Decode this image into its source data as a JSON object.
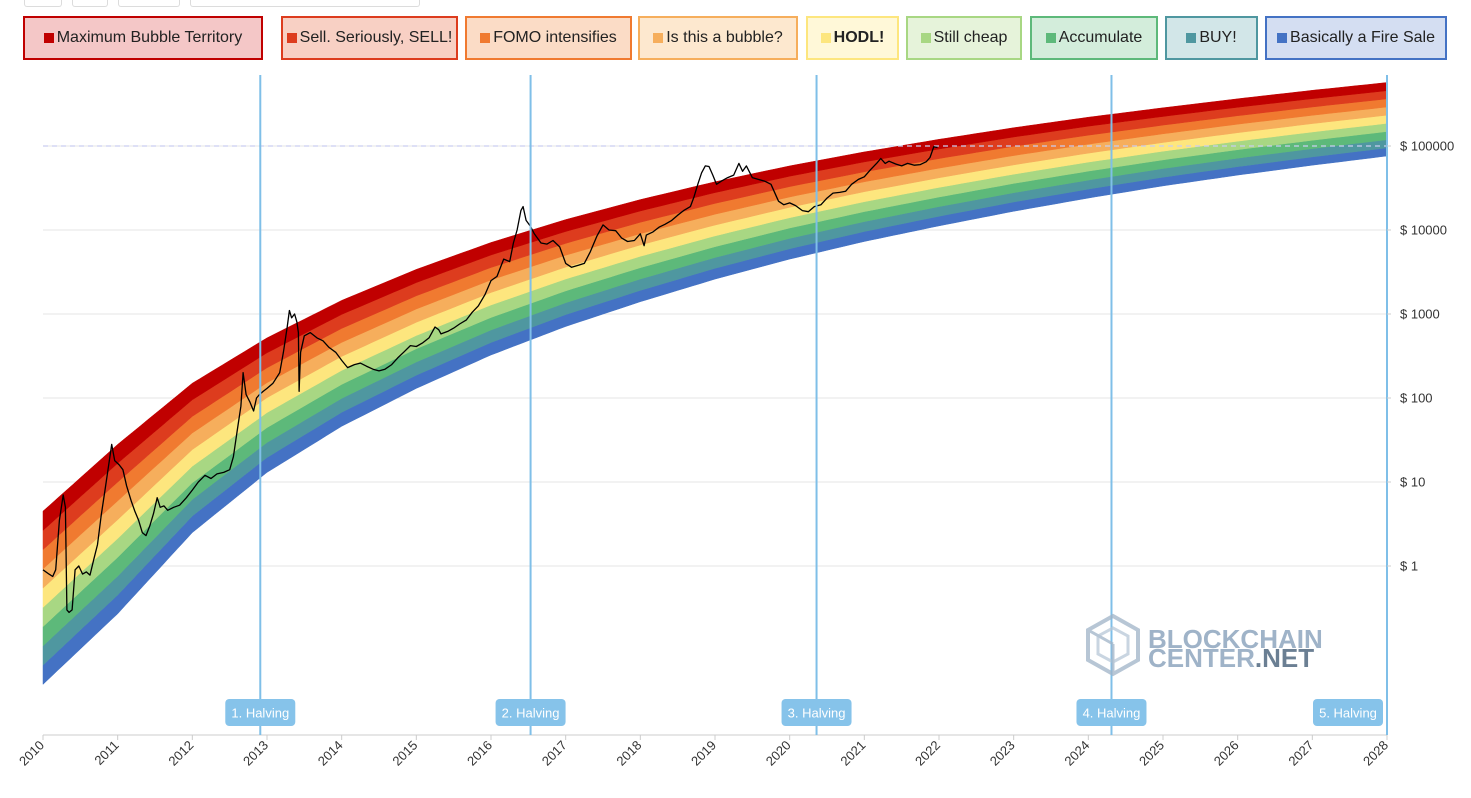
{
  "legend": [
    {
      "label": "Maximum Bubble Territory",
      "color": "#c00000",
      "bg": "#f4c7c7",
      "border": "#c00000",
      "bold": false
    },
    {
      "label": "Sell. Seriously, SELL!",
      "color": "#dd3c1e",
      "bg": "#f8d0c4",
      "border": "#dd3c1e",
      "bold": false
    },
    {
      "label": "FOMO intensifies",
      "color": "#f07a30",
      "bg": "#fbdcc6",
      "border": "#f07a30",
      "bold": false
    },
    {
      "label": "Is this a bubble?",
      "color": "#f6ae5c",
      "bg": "#fde8cf",
      "border": "#f6ae5c",
      "bold": false
    },
    {
      "label": "HODL!",
      "color": "#fde67e",
      "bg": "#fff8d8",
      "border": "#fde67e",
      "bold": true
    },
    {
      "label": "Still cheap",
      "color": "#a8d783",
      "bg": "#e6f3da",
      "border": "#a8d783",
      "bold": false
    },
    {
      "label": "Accumulate",
      "color": "#5db97a",
      "bg": "#d3eddb",
      "border": "#5db97a",
      "bold": false
    },
    {
      "label": "BUY!",
      "color": "#4f97a0",
      "bg": "#d2e6e8",
      "border": "#4f97a0",
      "bold": false
    },
    {
      "label": "Basically a Fire Sale",
      "color": "#4472c4",
      "bg": "#d4def2",
      "border": "#4472c4",
      "bold": false
    }
  ],
  "watermark": {
    "line1": "BLOCKCHAIN",
    "line2a": "CENTER",
    "line2b": ".NET"
  },
  "chart_data": {
    "type": "line",
    "title": "",
    "xlabel": "",
    "ylabel": "",
    "y_scale": "log",
    "xlim": [
      2010.0,
      2028.0
    ],
    "ylim": [
      0.008,
      500000
    ],
    "x_ticks": [
      "2010",
      "2011",
      "2012",
      "2013",
      "2014",
      "2015",
      "2016",
      "2017",
      "2018",
      "2019",
      "2020",
      "2021",
      "2022",
      "2023",
      "2024",
      "2025",
      "2026",
      "2027",
      "2028"
    ],
    "y_ticks": [
      {
        "value": 1,
        "label": "$ 1"
      },
      {
        "value": 10,
        "label": "$ 10"
      },
      {
        "value": 100,
        "label": "$ 100"
      },
      {
        "value": 1000,
        "label": "$ 1000"
      },
      {
        "value": 10000,
        "label": "$ 10000"
      },
      {
        "value": 100000,
        "label": "$ 100000"
      }
    ],
    "bands": {
      "series": [
        "Basically a Fire Sale",
        "BUY!",
        "Accumulate",
        "Still cheap",
        "HODL!",
        "Is this a bubble?",
        "FOMO intensifies",
        "Sell. Seriously, SELL!",
        "Maximum Bubble Territory"
      ],
      "colors": [
        "#4472c4",
        "#4f97a0",
        "#5db97a",
        "#a8d783",
        "#fde67e",
        "#f6ae5c",
        "#f07a30",
        "#dd3c1e",
        "#c00000"
      ],
      "lower_bound": [
        {
          "x": 2010.0,
          "y": 0.039
        },
        {
          "x": 2011.0,
          "y": 0.27
        },
        {
          "x": 2012.0,
          "y": 2.5
        },
        {
          "x": 2013.0,
          "y": 13
        },
        {
          "x": 2014.0,
          "y": 46
        },
        {
          "x": 2015.0,
          "y": 130
        },
        {
          "x": 2016.0,
          "y": 325
        },
        {
          "x": 2017.0,
          "y": 710
        },
        {
          "x": 2018.0,
          "y": 1400
        },
        {
          "x": 2019.0,
          "y": 2600
        },
        {
          "x": 2020.0,
          "y": 4500
        },
        {
          "x": 2021.0,
          "y": 7300
        },
        {
          "x": 2022.0,
          "y": 11200
        },
        {
          "x": 2023.0,
          "y": 16700
        },
        {
          "x": 2024.0,
          "y": 24000
        },
        {
          "x": 2025.0,
          "y": 33500
        },
        {
          "x": 2026.0,
          "y": 45000
        },
        {
          "x": 2027.0,
          "y": 59000
        },
        {
          "x": 2028.0,
          "y": 76000
        }
      ],
      "upper_bound": [
        {
          "x": 2010.0,
          "y": 4.5
        },
        {
          "x": 2011.0,
          "y": 28
        },
        {
          "x": 2012.0,
          "y": 150
        },
        {
          "x": 2013.0,
          "y": 520
        },
        {
          "x": 2014.0,
          "y": 1450
        },
        {
          "x": 2015.0,
          "y": 3400
        },
        {
          "x": 2016.0,
          "y": 7100
        },
        {
          "x": 2017.0,
          "y": 13300
        },
        {
          "x": 2018.0,
          "y": 23000
        },
        {
          "x": 2019.0,
          "y": 37500
        },
        {
          "x": 2020.0,
          "y": 58000
        },
        {
          "x": 2021.0,
          "y": 85000
        },
        {
          "x": 2022.0,
          "y": 120000
        },
        {
          "x": 2023.0,
          "y": 165000
        },
        {
          "x": 2024.0,
          "y": 220000
        },
        {
          "x": 2025.0,
          "y": 285000
        },
        {
          "x": 2026.0,
          "y": 365000
        },
        {
          "x": 2027.0,
          "y": 460000
        },
        {
          "x": 2028.0,
          "y": 570000
        }
      ]
    },
    "series": [
      {
        "values": [
          {
            "x": 2010.0,
            "y": 0.9
          },
          {
            "x": 2010.08,
            "y": 0.8
          },
          {
            "x": 2010.13,
            "y": 0.75
          },
          {
            "x": 2010.17,
            "y": 0.9
          },
          {
            "x": 2010.22,
            "y": 3.5
          },
          {
            "x": 2010.27,
            "y": 7
          },
          {
            "x": 2010.3,
            "y": 5
          },
          {
            "x": 2010.32,
            "y": 0.3
          },
          {
            "x": 2010.35,
            "y": 0.28
          },
          {
            "x": 2010.39,
            "y": 0.3
          },
          {
            "x": 2010.43,
            "y": 0.9
          },
          {
            "x": 2010.48,
            "y": 1.0
          },
          {
            "x": 2010.53,
            "y": 0.8
          },
          {
            "x": 2010.58,
            "y": 0.85
          },
          {
            "x": 2010.63,
            "y": 0.78
          },
          {
            "x": 2010.68,
            "y": 1.2
          },
          {
            "x": 2010.73,
            "y": 1.8
          },
          {
            "x": 2010.78,
            "y": 4
          },
          {
            "x": 2010.83,
            "y": 8
          },
          {
            "x": 2010.87,
            "y": 14
          },
          {
            "x": 2010.92,
            "y": 28
          },
          {
            "x": 2010.96,
            "y": 18
          },
          {
            "x": 2011.02,
            "y": 16
          },
          {
            "x": 2011.07,
            "y": 14
          },
          {
            "x": 2011.12,
            "y": 9
          },
          {
            "x": 2011.18,
            "y": 6
          },
          {
            "x": 2011.23,
            "y": 4.5
          },
          {
            "x": 2011.28,
            "y": 3.5
          },
          {
            "x": 2011.33,
            "y": 2.5
          },
          {
            "x": 2011.38,
            "y": 2.3
          },
          {
            "x": 2011.43,
            "y": 3
          },
          {
            "x": 2011.48,
            "y": 4.2
          },
          {
            "x": 2011.53,
            "y": 6.5
          },
          {
            "x": 2011.57,
            "y": 5
          },
          {
            "x": 2011.62,
            "y": 5.2
          },
          {
            "x": 2011.67,
            "y": 4.6
          },
          {
            "x": 2011.75,
            "y": 5
          },
          {
            "x": 2011.83,
            "y": 5.3
          },
          {
            "x": 2011.92,
            "y": 6.5
          },
          {
            "x": 2012.0,
            "y": 8
          },
          {
            "x": 2012.08,
            "y": 10
          },
          {
            "x": 2012.17,
            "y": 12
          },
          {
            "x": 2012.25,
            "y": 11
          },
          {
            "x": 2012.33,
            "y": 12.5
          },
          {
            "x": 2012.42,
            "y": 13
          },
          {
            "x": 2012.5,
            "y": 14
          },
          {
            "x": 2012.55,
            "y": 20
          },
          {
            "x": 2012.6,
            "y": 40
          },
          {
            "x": 2012.65,
            "y": 80
          },
          {
            "x": 2012.68,
            "y": 200
          },
          {
            "x": 2012.72,
            "y": 110
          },
          {
            "x": 2012.77,
            "y": 90
          },
          {
            "x": 2012.82,
            "y": 70
          },
          {
            "x": 2012.86,
            "y": 100
          },
          {
            "x": 2012.9,
            "y": 110
          },
          {
            "x": 2012.95,
            "y": 120
          },
          {
            "x": 2013.0,
            "y": 130
          },
          {
            "x": 2013.08,
            "y": 150
          },
          {
            "x": 2013.17,
            "y": 200
          },
          {
            "x": 2013.22,
            "y": 350
          },
          {
            "x": 2013.27,
            "y": 700
          },
          {
            "x": 2013.3,
            "y": 1100
          },
          {
            "x": 2013.33,
            "y": 900
          },
          {
            "x": 2013.37,
            "y": 1000
          },
          {
            "x": 2013.4,
            "y": 800
          },
          {
            "x": 2013.42,
            "y": 600
          },
          {
            "x": 2013.43,
            "y": 120
          },
          {
            "x": 2013.45,
            "y": 350
          },
          {
            "x": 2013.5,
            "y": 550
          },
          {
            "x": 2013.58,
            "y": 600
          },
          {
            "x": 2013.67,
            "y": 520
          },
          {
            "x": 2013.75,
            "y": 480
          },
          {
            "x": 2013.83,
            "y": 400
          },
          {
            "x": 2013.92,
            "y": 350
          },
          {
            "x": 2014.0,
            "y": 280
          },
          {
            "x": 2014.08,
            "y": 230
          },
          {
            "x": 2014.17,
            "y": 250
          },
          {
            "x": 2014.25,
            "y": 260
          },
          {
            "x": 2014.33,
            "y": 240
          },
          {
            "x": 2014.42,
            "y": 220
          },
          {
            "x": 2014.5,
            "y": 210
          },
          {
            "x": 2014.58,
            "y": 220
          },
          {
            "x": 2014.67,
            "y": 250
          },
          {
            "x": 2014.75,
            "y": 300
          },
          {
            "x": 2014.83,
            "y": 350
          },
          {
            "x": 2014.92,
            "y": 420
          },
          {
            "x": 2015.0,
            "y": 410
          },
          {
            "x": 2015.08,
            "y": 450
          },
          {
            "x": 2015.17,
            "y": 520
          },
          {
            "x": 2015.25,
            "y": 700
          },
          {
            "x": 2015.3,
            "y": 650
          },
          {
            "x": 2015.33,
            "y": 580
          },
          {
            "x": 2015.42,
            "y": 620
          },
          {
            "x": 2015.5,
            "y": 680
          },
          {
            "x": 2015.58,
            "y": 760
          },
          {
            "x": 2015.67,
            "y": 850
          },
          {
            "x": 2015.75,
            "y": 1050
          },
          {
            "x": 2015.83,
            "y": 1250
          },
          {
            "x": 2015.92,
            "y": 1700
          },
          {
            "x": 2016.0,
            "y": 2500
          },
          {
            "x": 2016.08,
            "y": 2800
          },
          {
            "x": 2016.17,
            "y": 4500
          },
          {
            "x": 2016.25,
            "y": 4200
          },
          {
            "x": 2016.3,
            "y": 7000
          },
          {
            "x": 2016.35,
            "y": 10000
          },
          {
            "x": 2016.4,
            "y": 17000
          },
          {
            "x": 2016.43,
            "y": 19000
          },
          {
            "x": 2016.47,
            "y": 13000
          },
          {
            "x": 2016.53,
            "y": 11000
          },
          {
            "x": 2016.58,
            "y": 9000
          },
          {
            "x": 2016.67,
            "y": 7000
          },
          {
            "x": 2016.75,
            "y": 6800
          },
          {
            "x": 2016.83,
            "y": 7500
          },
          {
            "x": 2016.92,
            "y": 6300
          },
          {
            "x": 2017.0,
            "y": 4000
          },
          {
            "x": 2017.08,
            "y": 3600
          },
          {
            "x": 2017.17,
            "y": 3800
          },
          {
            "x": 2017.25,
            "y": 4000
          },
          {
            "x": 2017.33,
            "y": 5500
          },
          {
            "x": 2017.42,
            "y": 8500
          },
          {
            "x": 2017.5,
            "y": 11500
          },
          {
            "x": 2017.58,
            "y": 10000
          },
          {
            "x": 2017.67,
            "y": 9800
          },
          {
            "x": 2017.75,
            "y": 8000
          },
          {
            "x": 2017.83,
            "y": 7300
          },
          {
            "x": 2017.92,
            "y": 7500
          },
          {
            "x": 2018.0,
            "y": 9000
          },
          {
            "x": 2018.05,
            "y": 6500
          },
          {
            "x": 2018.08,
            "y": 8700
          },
          {
            "x": 2018.17,
            "y": 9500
          },
          {
            "x": 2018.25,
            "y": 10800
          },
          {
            "x": 2018.33,
            "y": 11700
          },
          {
            "x": 2018.42,
            "y": 13000
          },
          {
            "x": 2018.5,
            "y": 15000
          },
          {
            "x": 2018.58,
            "y": 17000
          },
          {
            "x": 2018.67,
            "y": 19000
          },
          {
            "x": 2018.72,
            "y": 25000
          },
          {
            "x": 2018.77,
            "y": 35000
          },
          {
            "x": 2018.82,
            "y": 48000
          },
          {
            "x": 2018.87,
            "y": 58000
          },
          {
            "x": 2018.92,
            "y": 57000
          },
          {
            "x": 2018.97,
            "y": 45000
          },
          {
            "x": 2019.02,
            "y": 35000
          },
          {
            "x": 2019.08,
            "y": 38000
          },
          {
            "x": 2019.17,
            "y": 42000
          },
          {
            "x": 2019.25,
            "y": 45000
          },
          {
            "x": 2019.32,
            "y": 62000
          },
          {
            "x": 2019.37,
            "y": 50000
          },
          {
            "x": 2019.42,
            "y": 58000
          },
          {
            "x": 2019.5,
            "y": 42000
          },
          {
            "x": 2019.58,
            "y": 40000
          },
          {
            "x": 2019.67,
            "y": 38000
          },
          {
            "x": 2019.75,
            "y": 35000
          },
          {
            "x": 2019.85,
            "y": 22000
          },
          {
            "x": 2019.92,
            "y": 20000
          },
          {
            "x": 2020.0,
            "y": 21000
          },
          {
            "x": 2020.08,
            "y": 19500
          },
          {
            "x": 2020.17,
            "y": 17000
          },
          {
            "x": 2020.25,
            "y": 16500
          },
          {
            "x": 2020.33,
            "y": 19000
          },
          {
            "x": 2020.42,
            "y": 20000
          },
          {
            "x": 2020.5,
            "y": 24000
          },
          {
            "x": 2020.58,
            "y": 27500
          },
          {
            "x": 2020.67,
            "y": 28000
          },
          {
            "x": 2020.75,
            "y": 29000
          },
          {
            "x": 2020.83,
            "y": 35000
          },
          {
            "x": 2020.92,
            "y": 40000
          },
          {
            "x": 2021.0,
            "y": 43000
          },
          {
            "x": 2021.08,
            "y": 52000
          },
          {
            "x": 2021.17,
            "y": 63000
          },
          {
            "x": 2021.22,
            "y": 71000
          },
          {
            "x": 2021.28,
            "y": 62000
          },
          {
            "x": 2021.33,
            "y": 66000
          },
          {
            "x": 2021.42,
            "y": 61000
          },
          {
            "x": 2021.5,
            "y": 58000
          },
          {
            "x": 2021.58,
            "y": 62000
          },
          {
            "x": 2021.67,
            "y": 59000
          },
          {
            "x": 2021.75,
            "y": 60000
          },
          {
            "x": 2021.83,
            "y": 65000
          },
          {
            "x": 2021.88,
            "y": 73000
          },
          {
            "x": 2021.93,
            "y": 98000
          },
          {
            "x": 2021.98,
            "y": 96000
          }
        ]
      }
    ],
    "reference_line": {
      "y": 100000
    },
    "halvings": [
      {
        "x": 2012.91,
        "label": "1. Halving"
      },
      {
        "x": 2016.53,
        "label": "2. Halving"
      },
      {
        "x": 2020.36,
        "label": "3. Halving"
      },
      {
        "x": 2024.31,
        "label": "4. Halving"
      },
      {
        "x": 2028.0,
        "label": "5. Halving"
      }
    ]
  }
}
